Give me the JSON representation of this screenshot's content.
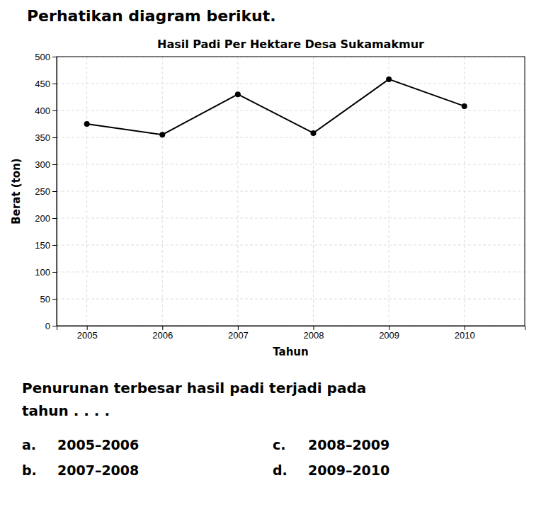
{
  "chart_data": {
    "type": "line",
    "title": "Hasil Padi Per Hektare Desa Sukamakmur",
    "x_label": "Tahun",
    "y_label": "Berat (ton)",
    "x": [
      2005,
      2006,
      2007,
      2008,
      2009,
      2010
    ],
    "values": [
      375,
      355,
      430,
      358,
      458,
      408
    ],
    "xlim": [
      2004.6,
      2010.8
    ],
    "xticks": [
      2005,
      2006,
      2007,
      2008,
      2009,
      2010
    ],
    "ylim": [
      0,
      500
    ],
    "yticks": [
      0,
      50,
      100,
      150,
      200,
      250,
      300,
      350,
      400,
      450,
      500
    ],
    "color": "#000000",
    "marker": "circle",
    "line_style": "solid",
    "grid": true
  },
  "heading": "Perhatikan diagram berikut.",
  "question": [
    "Penurunan terbesar hasil padi terjadi pada",
    "tahun . . . ."
  ],
  "options": [
    {
      "label": "a.",
      "text": "2005–2006"
    },
    {
      "label": "b.",
      "text": "2007–2008"
    },
    {
      "label": "c.",
      "text": "2008–2009"
    },
    {
      "label": "d.",
      "text": "2009–2010"
    }
  ]
}
